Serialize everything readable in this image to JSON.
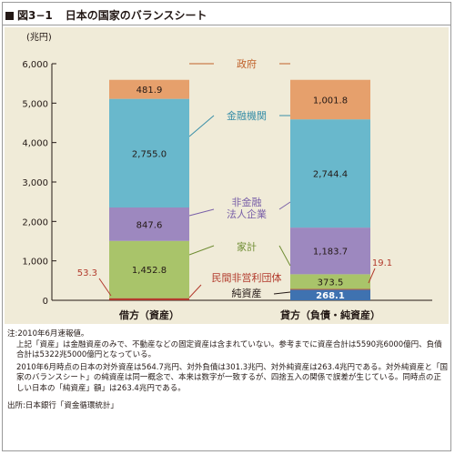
{
  "title": {
    "figure_no": "図3−1",
    "text": "日本の国家のバランスシート"
  },
  "chart_data": {
    "type": "bar",
    "stacked": true,
    "ylabel": "(兆円)",
    "ylim": [
      0,
      6000
    ],
    "yticks": [
      "0",
      "1,000",
      "2,000",
      "3,000",
      "4,000",
      "5,000",
      "6,000"
    ],
    "categories": [
      "借方（資産）",
      "貸方（負債・純資産）"
    ],
    "series": [
      {
        "name": "純資産",
        "values": [
          0,
          268.1
        ],
        "labels": [
          "",
          "268.1"
        ],
        "color": "#3f72b0"
      },
      {
        "name": "民間非営利団体",
        "values": [
          53.3,
          19.1
        ],
        "labels": [
          "53.3",
          "19.1"
        ],
        "color": "#b23a2c"
      },
      {
        "name": "家計",
        "values": [
          1452.8,
          373.5
        ],
        "labels": [
          "1,452.8",
          "373.5"
        ],
        "color": "#a9c46a"
      },
      {
        "name": "非金融法人企業",
        "values": [
          847.6,
          1183.7
        ],
        "labels": [
          "847.6",
          "1,183.7"
        ],
        "color": "#9d88bf"
      },
      {
        "name": "金融機関",
        "values": [
          2755.0,
          2744.4
        ],
        "labels": [
          "2,755.0",
          "2,744.4"
        ],
        "color": "#69b8cc"
      },
      {
        "name": "政府",
        "values": [
          481.9,
          1001.8
        ],
        "labels": [
          "481.9",
          "1,001.8"
        ],
        "color": "#e6a06c"
      }
    ],
    "annotations": [
      {
        "text": "政府",
        "color": "#c0612a"
      },
      {
        "text": "金融機関",
        "color": "#3a8fa8"
      },
      {
        "text": "非金融\n法人企業",
        "color": "#7a61a8"
      },
      {
        "text": "家計",
        "color": "#6f8d33"
      },
      {
        "text": "民間非営利団体",
        "color": "#b23a2c"
      },
      {
        "text": "純資産",
        "color": "#231815"
      }
    ]
  },
  "notes": {
    "line1": "注:2010年6月速報値。",
    "para1": "上記「資産」は金融資産のみで、不動産などの固定資産は含まれていない。参考までに資産合計は5590兆6000億円、負債合計は5322兆5000億円となっている。",
    "para2": "2010年6月時点の日本の対外資産は564.7兆円、対外負債は301.3兆円、対外純資産は263.4兆円である。対外純資産と「国家のバランスシート」の純資産は同一概念で、本来は数字が一致するが、四捨五入の関係で誤差が生じている。同時点の正しい日本の「純資産」額」は263.4兆円である。",
    "source": "出所:日本銀行「資金循環統計」"
  }
}
